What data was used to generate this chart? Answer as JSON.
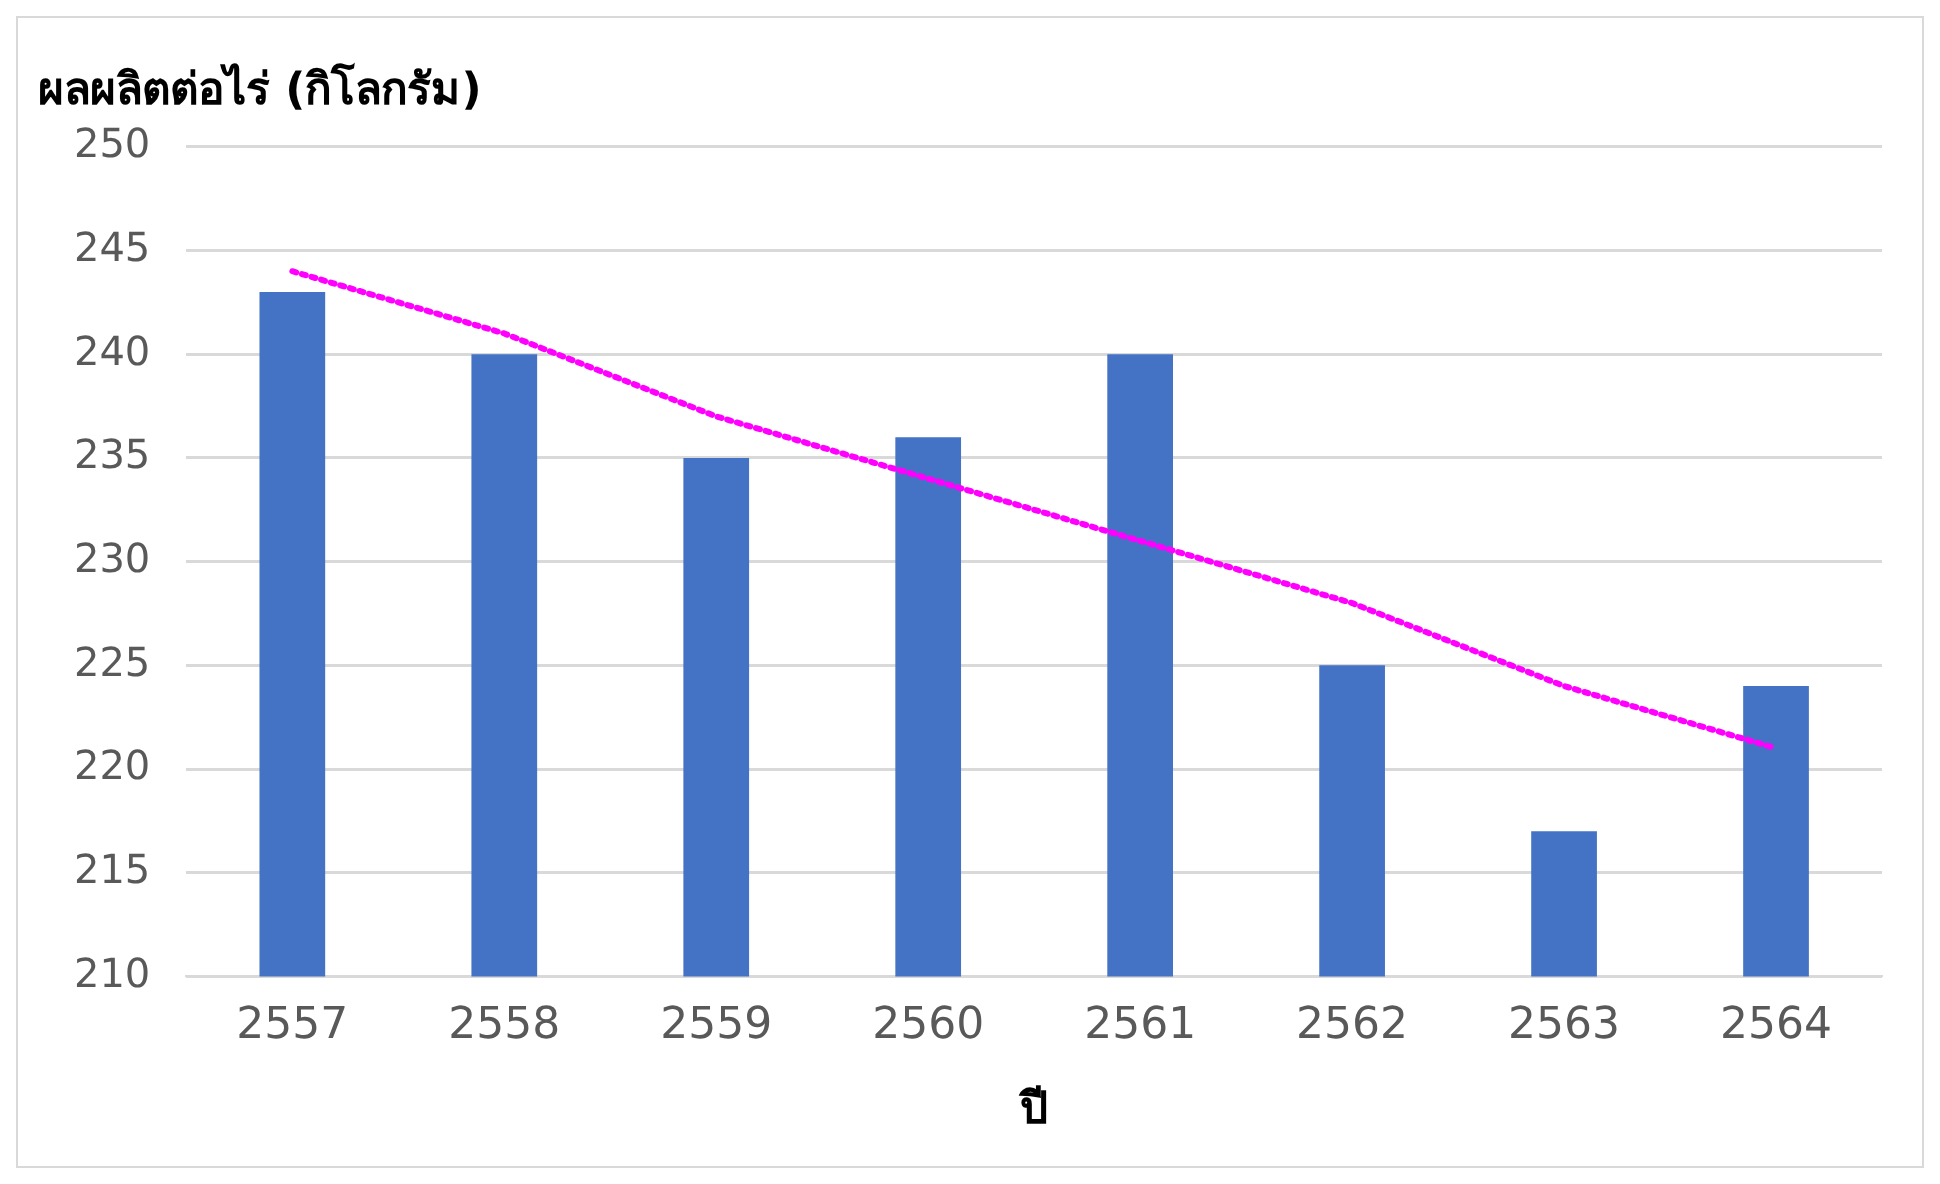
{
  "chart_data": {
    "type": "bar",
    "title": "ผลผลิตต่อไร่ (กิโลกรัม)",
    "xlabel": "ปี",
    "categories": [
      "2557",
      "2558",
      "2559",
      "2560",
      "2561",
      "2562",
      "2563",
      "2564"
    ],
    "series": [
      {
        "color": "#4472c4",
        "values": [
          243,
          240,
          235,
          236,
          240,
          225,
          217,
          224
        ]
      },
      {
        "type": "line",
        "color": "#ff00ff",
        "line_style": "dotted",
        "marker": "none",
        "values": [
          244,
          241,
          237,
          234,
          231,
          228,
          224,
          221
        ]
      }
    ],
    "ylim": [
      210,
      250
    ],
    "yticks": [
      210,
      215,
      220,
      225,
      230,
      235,
      240,
      245,
      250
    ],
    "grid": "y",
    "legend": false
  }
}
